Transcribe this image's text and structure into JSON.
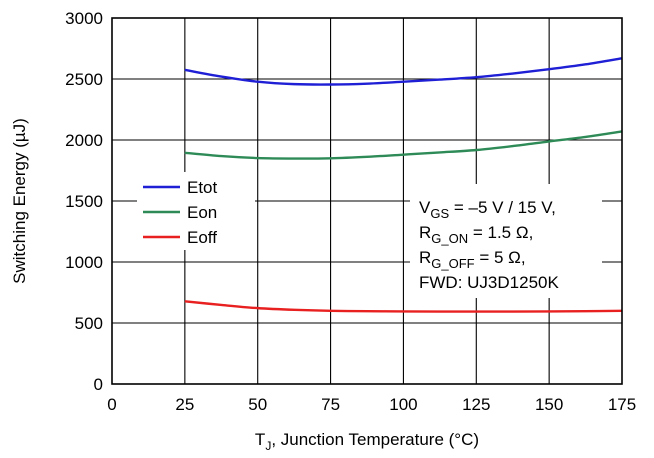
{
  "chart_data": {
    "type": "line",
    "xlabel": {
      "main": "T",
      "sub": "J",
      "rest": ", Junction Temperature (°C)"
    },
    "ylabel": "Switching Energy (µJ)",
    "xlim": [
      0,
      175
    ],
    "ylim": [
      0,
      3000
    ],
    "x_ticks": [
      0,
      25,
      50,
      75,
      100,
      125,
      150,
      175
    ],
    "y_ticks": [
      0,
      500,
      1000,
      1500,
      2000,
      2500,
      3000
    ],
    "grid": true,
    "legend_position": "left-middle",
    "series": [
      {
        "name": "Etot",
        "color": "#1f1fd6",
        "x": [
          25,
          37.5,
          50,
          62.5,
          75,
          87.5,
          100,
          112.5,
          125,
          137.5,
          150,
          162.5,
          175
        ],
        "y": [
          2575,
          2520,
          2478,
          2458,
          2455,
          2462,
          2478,
          2495,
          2515,
          2545,
          2580,
          2620,
          2670
        ]
      },
      {
        "name": "Eon",
        "color": "#2e8b57",
        "x": [
          25,
          37.5,
          50,
          62.5,
          75,
          87.5,
          100,
          112.5,
          125,
          137.5,
          150,
          162.5,
          175
        ],
        "y": [
          1895,
          1868,
          1852,
          1848,
          1850,
          1862,
          1880,
          1898,
          1918,
          1950,
          1988,
          2025,
          2070
        ]
      },
      {
        "name": "Eoff",
        "color": "#e82020",
        "x": [
          25,
          37.5,
          50,
          62.5,
          75,
          87.5,
          100,
          112.5,
          125,
          137.5,
          150,
          162.5,
          175
        ],
        "y": [
          678,
          648,
          622,
          608,
          600,
          597,
          595,
          594,
          594,
          594,
          595,
          597,
          600
        ]
      }
    ],
    "annotation": [
      {
        "main": "V",
        "sub": "GS",
        "rest": " = –5 V / 15 V,"
      },
      {
        "main": "R",
        "sub": "G_ON",
        "rest": " = 1.5 Ω,"
      },
      {
        "main": "R",
        "sub": "G_OFF",
        "rest": " = 5 Ω,"
      },
      {
        "main": "FWD: UJ3D1250K",
        "sub": "",
        "rest": ""
      }
    ]
  }
}
